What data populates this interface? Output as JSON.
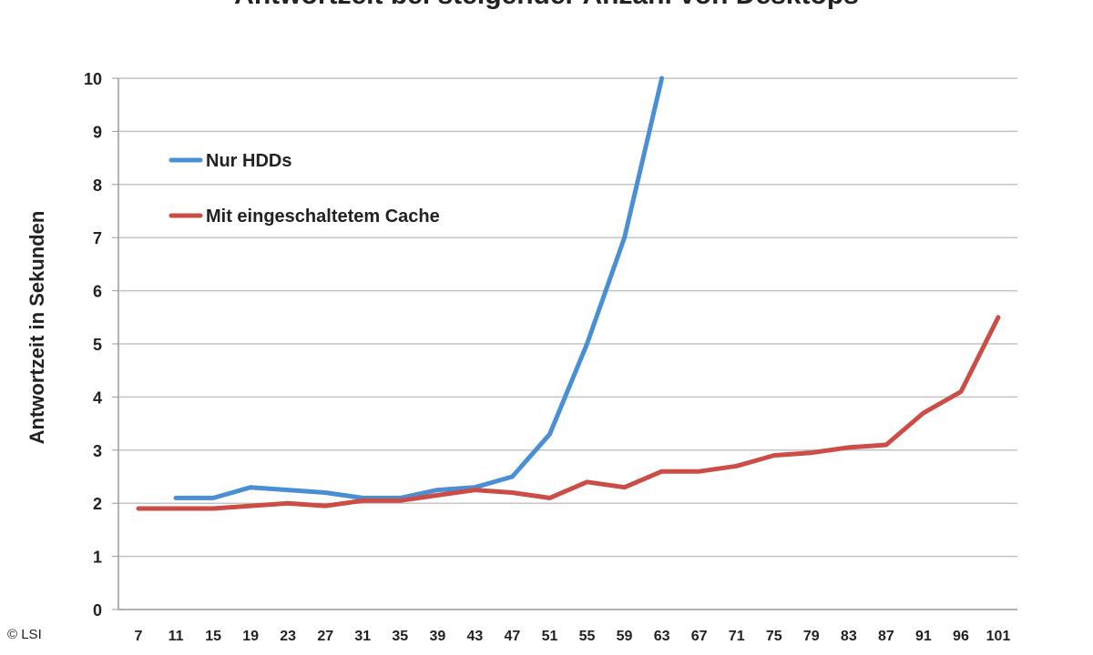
{
  "chart_data": {
    "type": "line",
    "title": "Antwortzeit bei steigender Anzahl von Desktops",
    "xlabel": "",
    "ylabel": "Antwortzeit in Sekunden",
    "ylim": [
      0,
      10
    ],
    "yticks": [
      "0",
      "1",
      "2",
      "3",
      "4",
      "5",
      "6",
      "7",
      "8",
      "9",
      "10"
    ],
    "grid": true,
    "legend_position": "top-left",
    "categories": [
      "7",
      "11",
      "15",
      "19",
      "23",
      "27",
      "31",
      "35",
      "39",
      "43",
      "47",
      "51",
      "55",
      "59",
      "63",
      "67",
      "71",
      "75",
      "79",
      "83",
      "87",
      "91",
      "96",
      "101"
    ],
    "series": [
      {
        "name": "Nur HDDs",
        "color": "#4a8fd4",
        "values": [
          null,
          2.1,
          2.1,
          2.3,
          2.25,
          2.2,
          2.1,
          2.1,
          2.25,
          2.3,
          2.5,
          3.3,
          5.0,
          7.0,
          10.0,
          null,
          null,
          null,
          null,
          null,
          null,
          null,
          null,
          null
        ]
      },
      {
        "name": "Mit eingeschaltetem Cache",
        "color": "#cc4d46",
        "values": [
          1.9,
          1.9,
          1.9,
          1.95,
          2.0,
          1.95,
          2.05,
          2.05,
          2.15,
          2.25,
          2.2,
          2.1,
          2.4,
          2.3,
          2.6,
          2.6,
          2.7,
          2.9,
          2.95,
          3.05,
          3.1,
          3.7,
          4.1,
          5.5
        ]
      }
    ]
  },
  "copyright": "© LSI"
}
